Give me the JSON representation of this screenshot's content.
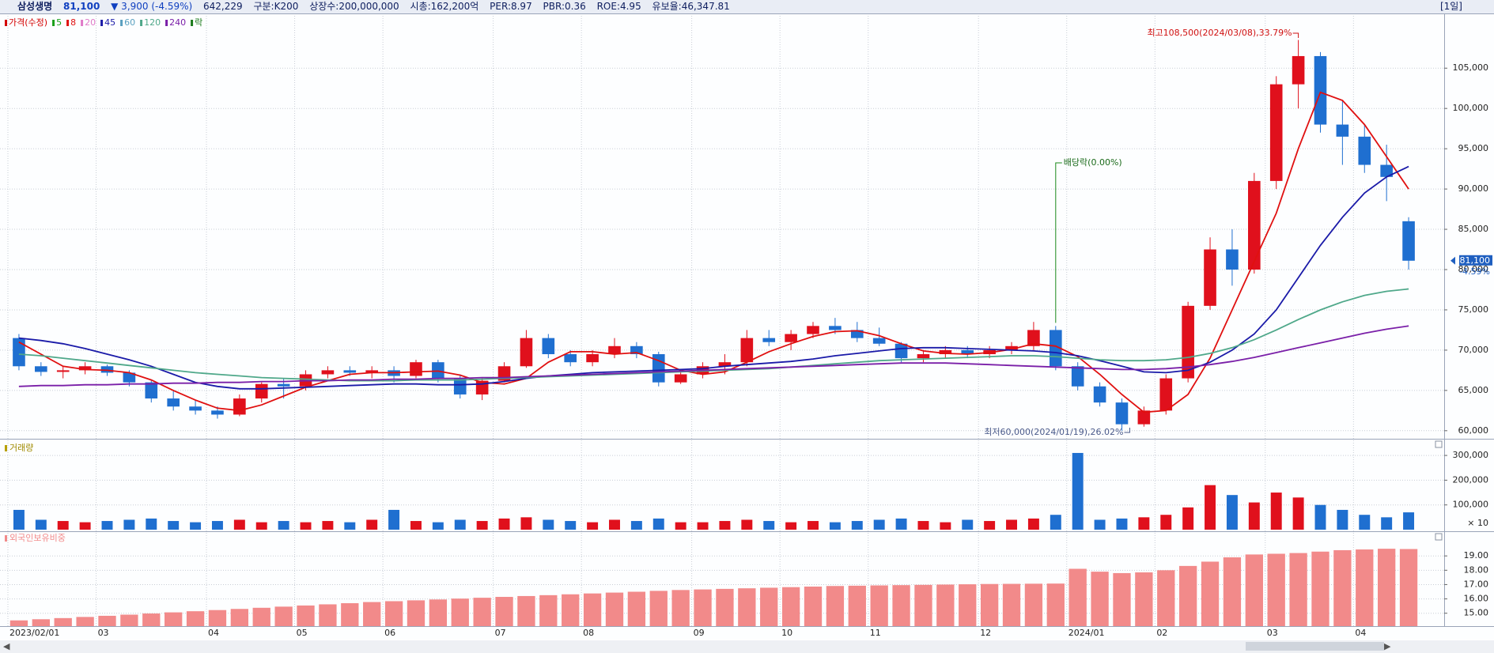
{
  "header": {
    "name": "삼성생명",
    "price": "81,100",
    "change": "▼ 3,900 (-4.59%)",
    "volume": "642,229",
    "class": "구분:K200",
    "shares": "상장수:200,000,000",
    "cap": "시총:162,200억",
    "per": "PER:8.97",
    "pbr": "PBR:0.36",
    "roe": "ROE:4.95",
    "reserve": "유보율:46,347.81",
    "period": "[1일]"
  },
  "chart_data": [
    {
      "type": "candlestick",
      "up_color": "#e0101c",
      "down_color": "#1f6fd0",
      "grid": true,
      "categories": [
        "2023/02/01",
        null,
        null,
        null,
        "03",
        null,
        null,
        null,
        null,
        "04",
        null,
        null,
        null,
        "05",
        null,
        null,
        null,
        "06",
        null,
        null,
        null,
        null,
        "07",
        null,
        null,
        null,
        "08",
        null,
        null,
        null,
        null,
        "09",
        null,
        null,
        null,
        "10",
        null,
        null,
        null,
        "11",
        null,
        null,
        null,
        null,
        "12",
        null,
        null,
        null,
        "2024/01",
        null,
        null,
        null,
        "02",
        null,
        null,
        null,
        null,
        "03",
        null,
        null,
        null,
        "04",
        null,
        null
      ],
      "open": [
        71500,
        68000,
        67300,
        67500,
        68000,
        67200,
        66000,
        64000,
        63000,
        62500,
        62000,
        64000,
        65800,
        65500,
        67000,
        67500,
        67200,
        67500,
        66800,
        68500,
        66500,
        64500,
        66200,
        68000,
        71500,
        69500,
        68500,
        69500,
        70500,
        69500,
        66000,
        67000,
        68000,
        68500,
        71500,
        71000,
        72000,
        73000,
        72500,
        71500,
        70800,
        69000,
        69500,
        70000,
        69500,
        70000,
        70500,
        72500,
        68000,
        65500,
        63500,
        60800,
        62500,
        66500,
        75500,
        82500,
        80000,
        91000,
        103000,
        106500,
        98000,
        96500,
        93000,
        86000
      ],
      "high": [
        72000,
        68500,
        68000,
        68500,
        68200,
        67500,
        66200,
        65000,
        63800,
        63000,
        64500,
        66000,
        66500,
        67500,
        68000,
        68000,
        68000,
        68000,
        68800,
        68800,
        67000,
        66500,
        68500,
        72500,
        72000,
        70000,
        70000,
        71500,
        71000,
        69800,
        67500,
        68500,
        69500,
        72500,
        72500,
        72500,
        73500,
        74000,
        73500,
        72800,
        71000,
        70000,
        70500,
        70500,
        70500,
        71000,
        73500,
        73000,
        68500,
        66000,
        64000,
        63000,
        67000,
        76000,
        84000,
        85000,
        92000,
        104000,
        108500,
        107000,
        101000,
        98000,
        95500,
        86500
      ],
      "low": [
        67500,
        66800,
        66500,
        67000,
        66800,
        65500,
        63500,
        62500,
        62000,
        61500,
        61800,
        63500,
        64000,
        65000,
        66500,
        66800,
        66500,
        66000,
        66500,
        66000,
        64000,
        63800,
        66000,
        67800,
        69000,
        68000,
        68000,
        69000,
        69000,
        65500,
        65800,
        66500,
        67000,
        68000,
        70500,
        70000,
        71500,
        72000,
        71000,
        70500,
        68500,
        68500,
        69000,
        69000,
        69000,
        69500,
        70000,
        67500,
        65000,
        63000,
        60000,
        60500,
        62000,
        66000,
        75000,
        78000,
        79500,
        90000,
        100000,
        97000,
        93000,
        92000,
        88500,
        80000
      ],
      "close": [
        68000,
        67300,
        67500,
        68000,
        67200,
        66000,
        64000,
        63000,
        62500,
        62000,
        64000,
        65800,
        65500,
        67000,
        67500,
        67200,
        67500,
        66800,
        68500,
        66500,
        64500,
        66200,
        68000,
        71500,
        69500,
        68500,
        69500,
        70500,
        69500,
        66000,
        67000,
        68000,
        68500,
        71500,
        71000,
        72000,
        73000,
        72500,
        71500,
        70800,
        69000,
        69500,
        70000,
        69500,
        70000,
        70500,
        72500,
        68000,
        65500,
        63500,
        60800,
        62500,
        66500,
        75500,
        82500,
        80000,
        91000,
        103000,
        106500,
        98000,
        96500,
        93000,
        91500,
        81100
      ],
      "series": [
        {
          "name": "가격(수정)",
          "color": "#d40000"
        },
        {
          "name": "5",
          "color": "#19a019"
        },
        {
          "name": "8",
          "color": "#e01010",
          "values": [
            71000,
            69500,
            68000,
            67600,
            67500,
            67200,
            66300,
            65000,
            63800,
            62800,
            62500,
            63200,
            64300,
            65400,
            66200,
            67000,
            67200,
            67200,
            67300,
            67400,
            66900,
            66000,
            65800,
            66500,
            68500,
            69800,
            69800,
            69500,
            69700,
            68700,
            67500,
            67000,
            67300,
            68500,
            69800,
            70800,
            71700,
            72300,
            72400,
            71800,
            70800,
            69900,
            69600,
            69500,
            69700,
            70100,
            70800,
            70500,
            69200,
            67000,
            64500,
            62300,
            62500,
            64500,
            69000,
            75000,
            81000,
            87000,
            95000,
            102000,
            101000,
            98000,
            94000,
            90000
          ]
        },
        {
          "name": "20",
          "color": "#e07ac8"
        },
        {
          "name": "45",
          "color": "#1a1aa8",
          "values": [
            71500,
            71200,
            70800,
            70200,
            69500,
            68800,
            68000,
            67000,
            66000,
            65500,
            65200,
            65200,
            65300,
            65400,
            65500,
            65600,
            65700,
            65800,
            65800,
            65700,
            65700,
            65800,
            66100,
            66500,
            66800,
            67000,
            67200,
            67300,
            67400,
            67500,
            67600,
            67700,
            68000,
            68200,
            68400,
            68600,
            68900,
            69300,
            69600,
            69900,
            70200,
            70300,
            70300,
            70200,
            70100,
            70000,
            69900,
            69700,
            69300,
            68700,
            68000,
            67300,
            67200,
            67500,
            68500,
            70000,
            72000,
            75000,
            79000,
            83000,
            86500,
            89500,
            91500,
            92800
          ]
        },
        {
          "name": "60",
          "color": "#5aa0c0"
        },
        {
          "name": "120",
          "color": "#4fa88a",
          "values": [
            69500,
            69300,
            69000,
            68700,
            68400,
            68100,
            67800,
            67500,
            67200,
            67000,
            66800,
            66600,
            66500,
            66400,
            66300,
            66200,
            66200,
            66200,
            66300,
            66300,
            66300,
            66400,
            66500,
            66600,
            66700,
            66800,
            66900,
            67000,
            67100,
            67200,
            67300,
            67400,
            67500,
            67600,
            67700,
            67900,
            68100,
            68300,
            68500,
            68700,
            68800,
            68900,
            69000,
            69100,
            69200,
            69300,
            69300,
            69200,
            69000,
            68800,
            68700,
            68700,
            68800,
            69100,
            69600,
            70300,
            71300,
            72500,
            73800,
            75000,
            76000,
            76800,
            77300,
            77600
          ]
        },
        {
          "name": "240",
          "color": "#7a1fa8",
          "values": [
            65500,
            65600,
            65600,
            65700,
            65700,
            65800,
            65800,
            65900,
            65900,
            66000,
            66000,
            66100,
            66100,
            66200,
            66200,
            66300,
            66300,
            66400,
            66400,
            66500,
            66500,
            66600,
            66600,
            66700,
            66800,
            66900,
            67000,
            67100,
            67200,
            67300,
            67400,
            67500,
            67600,
            67700,
            67800,
            67900,
            68000,
            68100,
            68200,
            68300,
            68400,
            68400,
            68400,
            68300,
            68200,
            68100,
            68000,
            67900,
            67800,
            67700,
            67600,
            67600,
            67700,
            67900,
            68200,
            68600,
            69100,
            69700,
            70300,
            70900,
            71500,
            72100,
            72600,
            73000
          ]
        },
        {
          "name": "락",
          "color": "#1a7a1a"
        }
      ],
      "ylim": [
        59000,
        111500
      ],
      "yticks": [
        {
          "value": 60000,
          "label": "60,000"
        },
        {
          "value": 65000,
          "label": "65,000"
        },
        {
          "value": 70000,
          "label": "70,000"
        },
        {
          "value": 75000,
          "label": "75,000"
        },
        {
          "value": 80000,
          "label": "80,000"
        },
        {
          "value": 85000,
          "label": "85,000"
        },
        {
          "value": 90000,
          "label": "90,000"
        },
        {
          "value": 95000,
          "label": "95,000"
        },
        {
          "value": 100000,
          "label": "100,000"
        },
        {
          "value": 105000,
          "label": "105,000"
        }
      ],
      "annotations": {
        "high": "최고108,500(2024/03/08),33.79%",
        "low": "최저60,000(2024/01/19),26.02%",
        "dividend": "배당락(0.00%)",
        "last_price": "81,100",
        "last_change": "-4.59%"
      }
    },
    {
      "type": "bar",
      "title": "거래량",
      "unit_label": "× 10",
      "grid": true,
      "values": [
        80000,
        40000,
        35000,
        30000,
        35000,
        40000,
        45000,
        35000,
        30000,
        35000,
        40000,
        30000,
        35000,
        30000,
        35000,
        30000,
        40000,
        80000,
        35000,
        30000,
        40000,
        35000,
        45000,
        50000,
        40000,
        35000,
        30000,
        40000,
        35000,
        45000,
        30000,
        30000,
        35000,
        40000,
        35000,
        30000,
        35000,
        30000,
        35000,
        40000,
        45000,
        35000,
        30000,
        40000,
        35000,
        40000,
        45000,
        60000,
        310000,
        40000,
        45000,
        50000,
        60000,
        90000,
        180000,
        140000,
        110000,
        150000,
        130000,
        100000,
        80000,
        60000,
        50000,
        70000
      ],
      "ylim": [
        0,
        345000
      ],
      "yticks": [
        {
          "value": 100000,
          "label": "100,000"
        },
        {
          "value": 200000,
          "label": "200,000"
        },
        {
          "value": 300000,
          "label": "300,000"
        }
      ]
    },
    {
      "type": "bar",
      "title": "외국인보유비중",
      "color": "#f28a8a",
      "grid": true,
      "values": [
        14.5,
        14.58,
        14.66,
        14.74,
        14.82,
        14.9,
        14.98,
        15.06,
        15.14,
        15.22,
        15.3,
        15.38,
        15.46,
        15.54,
        15.62,
        15.7,
        15.78,
        15.84,
        15.9,
        15.96,
        16.02,
        16.08,
        16.14,
        16.2,
        16.26,
        16.32,
        16.38,
        16.44,
        16.5,
        16.56,
        16.62,
        16.66,
        16.7,
        16.74,
        16.78,
        16.82,
        16.86,
        16.9,
        16.92,
        16.94,
        16.96,
        16.98,
        17.0,
        17.02,
        17.04,
        17.05,
        17.06,
        17.07,
        18.1,
        17.9,
        17.8,
        17.85,
        18.0,
        18.3,
        18.6,
        18.9,
        19.1,
        19.15,
        19.2,
        19.3,
        19.4,
        19.45,
        19.5,
        19.48
      ],
      "ylim": [
        14.1,
        20.5
      ],
      "yticks": [
        {
          "value": 15,
          "label": "15.00"
        },
        {
          "value": 16,
          "label": "16.00"
        },
        {
          "value": 17,
          "label": "17.00"
        },
        {
          "value": 18,
          "label": "18.00"
        },
        {
          "value": 19,
          "label": "19.00"
        }
      ]
    }
  ]
}
